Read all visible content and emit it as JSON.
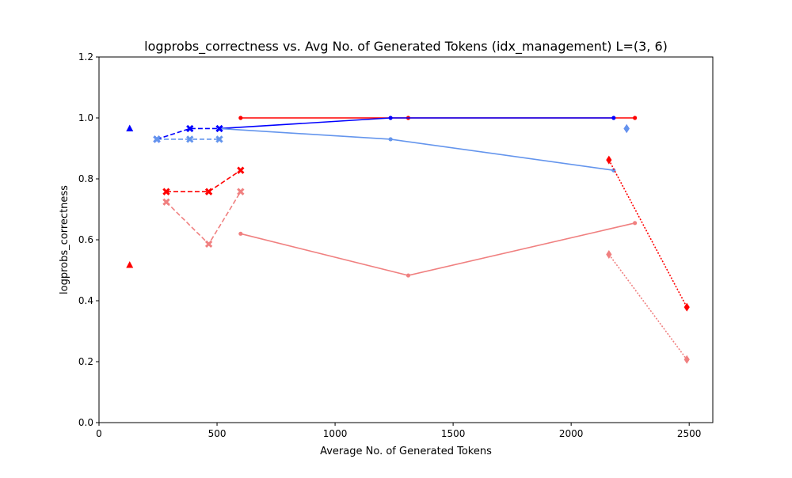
{
  "chart_data": {
    "type": "line",
    "title": "logprobs_correctness vs. Avg No. of Generated Tokens (idx_management) L=(3, 6)",
    "xlabel": "Average No. of Generated Tokens",
    "ylabel": "logprobs_correctness",
    "xlim": [
      0,
      2600
    ],
    "ylim": [
      0.0,
      1.2
    ],
    "xticks": [
      0,
      500,
      1000,
      1500,
      2000,
      2500
    ],
    "xtick_labels": [
      "0",
      "500",
      "1000",
      "1500",
      "2000",
      "2500"
    ],
    "yticks": [
      0.0,
      0.2,
      0.4,
      0.6,
      0.8,
      1.0,
      1.2
    ],
    "ytick_labels": [
      "0.0",
      "0.2",
      "0.4",
      "0.6",
      "0.8",
      "1.0",
      "1.2"
    ],
    "grid": false,
    "legend": "none",
    "series": [
      {
        "color": "#ff0000",
        "linestyle": "solid",
        "marker": "dot",
        "x": [
          600,
          1310,
          2270
        ],
        "y": [
          1.0,
          1.0,
          1.0
        ]
      },
      {
        "color": "#f08080",
        "linestyle": "solid",
        "marker": "dot",
        "x": [
          600,
          1310,
          2270
        ],
        "y": [
          0.62,
          0.483,
          0.655
        ]
      },
      {
        "color": "#0000ff",
        "linestyle": "solid",
        "marker": "dot",
        "x": [
          510,
          1235,
          2180
        ],
        "y": [
          0.965,
          1.0,
          1.0
        ]
      },
      {
        "color": "#6495ed",
        "linestyle": "solid",
        "marker": "dot",
        "x": [
          510,
          1235,
          2180
        ],
        "y": [
          0.965,
          0.93,
          0.828
        ]
      },
      {
        "color": "#ff0000",
        "linestyle": "dashed",
        "marker": "x",
        "x": [
          285,
          465,
          600
        ],
        "y": [
          0.758,
          0.758,
          0.828
        ]
      },
      {
        "color": "#f08080",
        "linestyle": "dashed",
        "marker": "x",
        "x": [
          285,
          465,
          600
        ],
        "y": [
          0.724,
          0.586,
          0.758
        ]
      },
      {
        "color": "#0000ff",
        "linestyle": "dashed",
        "marker": "x",
        "x": [
          245,
          385,
          510
        ],
        "y": [
          0.93,
          0.965,
          0.965
        ]
      },
      {
        "color": "#6495ed",
        "linestyle": "dashed",
        "marker": "x",
        "x": [
          245,
          385,
          510
        ],
        "y": [
          0.93,
          0.93,
          0.93
        ]
      },
      {
        "color": "#ff0000",
        "linestyle": "dotted",
        "marker": "diamond",
        "x": [
          2160,
          2490
        ],
        "y": [
          0.862,
          0.379
        ]
      },
      {
        "color": "#f08080",
        "linestyle": "dotted",
        "marker": "diamond",
        "x": [
          2160,
          2490
        ],
        "y": [
          0.552,
          0.207
        ]
      },
      {
        "color": "#0000ff",
        "linestyle": "none",
        "marker": "diamond",
        "x": [
          2235
        ],
        "y": [
          0.965
        ]
      },
      {
        "color": "#6495ed",
        "linestyle": "none",
        "marker": "diamond",
        "x": [
          2235
        ],
        "y": [
          0.965
        ]
      },
      {
        "color": "#0000ff",
        "linestyle": "none",
        "marker": "triangle",
        "x": [
          130
        ],
        "y": [
          0.965
        ]
      },
      {
        "color": "#ff0000",
        "linestyle": "none",
        "marker": "triangle",
        "x": [
          130
        ],
        "y": [
          0.517
        ]
      }
    ]
  }
}
